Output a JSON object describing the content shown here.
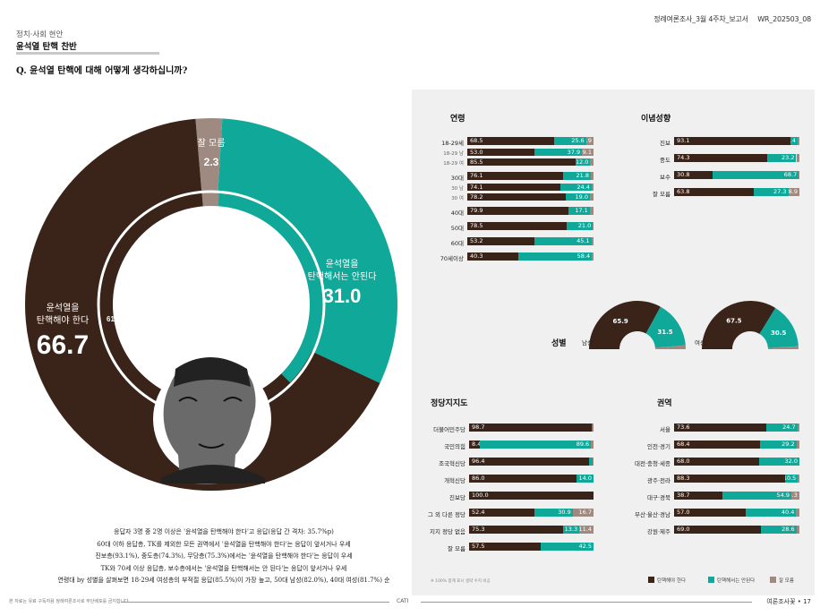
{
  "header": {
    "report_title": "정례여론조사_3월 4주차_보고서",
    "report_code": "WR_202503_08",
    "category": "정치·사회 현안",
    "topic": "윤석열 탄핵 찬반",
    "question": "Q. 윤석열 탄핵에 대해 어떻게 생각하십니까?"
  },
  "colors": {
    "impeach": "#3a2318",
    "not_impeach": "#10a899",
    "dont_know": "#9e8a80"
  },
  "main": {
    "impeach_label_1": "윤석열을",
    "impeach_label_2": "탄핵해야 한다",
    "impeach_value": "66.7",
    "not_label_1": "윤석열을",
    "not_label_2": "탄핵해서는 안된다",
    "not_value": "31.0",
    "dk_label": "잘 모름",
    "dk_value": "2.3",
    "inner_impeach": "61.2",
    "inner_not": "36.3",
    "inner_dk": "2.5"
  },
  "chart_data": [
    {
      "type": "pie",
      "categories": [
        "윤석열을 탄핵해야 한다",
        "윤석열을 탄핵해서는 안된다",
        "잘 모름"
      ],
      "outer_values": [
        66.7,
        31.0,
        2.3
      ],
      "inner_values": [
        61.2,
        36.3,
        2.5
      ]
    },
    {
      "type": "bar",
      "title": "연령",
      "stacked": true,
      "rows": [
        {
          "label": "18-29세",
          "values": [
            68.5,
            25.6,
            5.9
          ],
          "sub": false
        },
        {
          "label": "18-29 남",
          "values": [
            53.0,
            37.9,
            9.1
          ],
          "sub": true
        },
        {
          "label": "18-29 여",
          "values": [
            85.5,
            12.0,
            2.5
          ],
          "sub": true,
          "hide": [
            false,
            false,
            true
          ]
        },
        {
          "label": "30대",
          "values": [
            76.1,
            21.8,
            2.1
          ],
          "sub": false,
          "gap": true,
          "hide": [
            false,
            false,
            true
          ]
        },
        {
          "label": "30 남",
          "values": [
            74.1,
            24.4,
            1.5
          ],
          "sub": true,
          "hide": [
            false,
            false,
            true
          ]
        },
        {
          "label": "30 여",
          "values": [
            78.2,
            19.0,
            2.8
          ],
          "sub": true,
          "hide": [
            false,
            false,
            true
          ]
        },
        {
          "label": "40대",
          "values": [
            79.9,
            17.1,
            3.0
          ],
          "sub": false,
          "gap": true,
          "hide": [
            false,
            false,
            true
          ]
        },
        {
          "label": "50대",
          "values": [
            78.5,
            21.0,
            0.5
          ],
          "sub": false,
          "gap": true,
          "hide": [
            false,
            false,
            true
          ]
        },
        {
          "label": "60대",
          "values": [
            53.2,
            45.1,
            1.7
          ],
          "sub": false,
          "gap": true,
          "hide": [
            false,
            false,
            true
          ]
        },
        {
          "label": "70세이상",
          "values": [
            40.3,
            58.4,
            1.3
          ],
          "sub": false,
          "gap": true,
          "hide": [
            false,
            false,
            true
          ]
        }
      ]
    },
    {
      "type": "bar",
      "title": "이념성향",
      "stacked": true,
      "rows": [
        {
          "label": "진보",
          "values": [
            93.1,
            5.4,
            1.5
          ],
          "hide": [
            false,
            false,
            true
          ]
        },
        {
          "label": "중도",
          "values": [
            74.3,
            23.2,
            2.5
          ],
          "hide": [
            false,
            false,
            true
          ]
        },
        {
          "label": "보수",
          "values": [
            30.8,
            68.7,
            0.5
          ],
          "hide": [
            false,
            false,
            true
          ]
        },
        {
          "label": "잘 모름",
          "values": [
            63.8,
            27.3,
            8.9
          ]
        }
      ]
    },
    {
      "type": "pie",
      "title": "성별",
      "groups": [
        {
          "label": "남성",
          "values": [
            65.9,
            31.5,
            2.6
          ]
        },
        {
          "label": "여성",
          "values": [
            67.5,
            30.5,
            2.0
          ]
        }
      ]
    },
    {
      "type": "bar",
      "title": "정당지지도",
      "stacked": true,
      "rows": [
        {
          "label": "더불어민주당",
          "values": [
            98.7,
            0.3,
            1.0
          ],
          "hide": [
            false,
            true,
            true
          ]
        },
        {
          "label": "국민의힘",
          "values": [
            8.4,
            89.6,
            2.0
          ],
          "hide": [
            false,
            false,
            true
          ]
        },
        {
          "label": "조국혁신당",
          "values": [
            96.4,
            3.0,
            0.6
          ],
          "hide": [
            false,
            true,
            true
          ]
        },
        {
          "label": "개혁신당",
          "values": [
            86.0,
            14.0,
            0.0
          ],
          "hide": [
            false,
            false,
            true
          ]
        },
        {
          "label": "진보당",
          "values": [
            100.0,
            0.0,
            0.0
          ],
          "hide": [
            false,
            true,
            true
          ]
        },
        {
          "label": "그 외 다른 정당",
          "values": [
            52.4,
            30.9,
            16.7
          ]
        },
        {
          "label": "지지 정당 없음",
          "values": [
            75.3,
            13.3,
            11.4
          ]
        },
        {
          "label": "잘 모름",
          "values": [
            57.5,
            42.5,
            0.0
          ],
          "hide": [
            false,
            false,
            true
          ]
        }
      ]
    },
    {
      "type": "bar",
      "title": "권역",
      "stacked": true,
      "rows": [
        {
          "label": "서울",
          "values": [
            73.6,
            24.7,
            1.7
          ],
          "hide": [
            false,
            false,
            true
          ]
        },
        {
          "label": "인천·경기",
          "values": [
            68.4,
            29.2,
            2.4
          ],
          "hide": [
            false,
            false,
            true
          ]
        },
        {
          "label": "대전·충청·세종",
          "values": [
            68.0,
            32.0,
            0.0
          ],
          "hide": [
            false,
            false,
            true
          ]
        },
        {
          "label": "광주·전라",
          "values": [
            88.3,
            10.5,
            1.2
          ],
          "hide": [
            false,
            false,
            true
          ]
        },
        {
          "label": "대구·경북",
          "values": [
            38.7,
            54.9,
            6.3
          ]
        },
        {
          "label": "부산·울산·경남",
          "values": [
            57.0,
            40.4,
            2.6
          ],
          "hide": [
            false,
            false,
            true
          ]
        },
        {
          "label": "강원·제주",
          "values": [
            69.0,
            28.6,
            2.4
          ],
          "hide": [
            false,
            false,
            true
          ]
        }
      ]
    }
  ],
  "legend": {
    "impeach": "탄핵해야 한다",
    "not_impeach": "탄핵해서는 안된다",
    "dont_know": "잘 모름"
  },
  "summary": {
    "line1": "응답자 3명 중 2명 이상은 '윤석열을 탄핵해야 한다'고 응답(응답 간 격차: 35.7%p)",
    "line2": "60대 이하 응답층, TK를 제외한 모든 권역에서 '윤석열을 탄핵해야 한다'는 응답이 앞서거나 우세",
    "line3": "진보층(93.1%), 중도층(74.3%), 무당층(75.3%)에서는 '윤석열을 탄핵해야 한다'는 응답이 우세",
    "line4": "TK와 70세 이상 응답층, 보수층에서는 '윤석열을 탄핵해서는 안 된다'는 응답이 앞서거나 우세",
    "line5": "연령대 by 성별을 살펴보면 18-29세 여성층의 부적절 응답(85.5%)이 가장 높고, 50대 남성(82.0%), 40대 여성(81.7%) 순"
  },
  "footer": {
    "note": "본 자료는 유료 구독자용 정례여론조사로 무단배포를 금지합니다",
    "note_base": "※ 100% 합계 표시 생략 수치 비공",
    "center": "CATI",
    "right": "여론조사꽃 • 17"
  }
}
